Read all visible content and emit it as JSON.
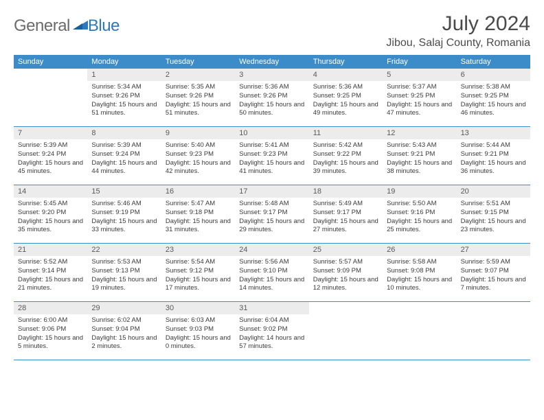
{
  "logo": {
    "general": "General",
    "blue": "Blue"
  },
  "title": "July 2024",
  "location": "Jibou, Salaj County, Romania",
  "colors": {
    "header_bg": "#3c8cc9",
    "header_text": "#ffffff",
    "date_bg": "#ececec",
    "date_text": "#595959",
    "body_text": "#3a3a3a",
    "rule": "#3c8cc9",
    "logo_gray": "#6b6b6b",
    "logo_blue": "#2f78b9"
  },
  "day_names": [
    "Sunday",
    "Monday",
    "Tuesday",
    "Wednesday",
    "Thursday",
    "Friday",
    "Saturday"
  ],
  "weeks": [
    [
      {
        "n": "",
        "empty": true
      },
      {
        "n": "1",
        "sr": "Sunrise: 5:34 AM",
        "ss": "Sunset: 9:26 PM",
        "dl": "Daylight: 15 hours and 51 minutes."
      },
      {
        "n": "2",
        "sr": "Sunrise: 5:35 AM",
        "ss": "Sunset: 9:26 PM",
        "dl": "Daylight: 15 hours and 51 minutes."
      },
      {
        "n": "3",
        "sr": "Sunrise: 5:36 AM",
        "ss": "Sunset: 9:26 PM",
        "dl": "Daylight: 15 hours and 50 minutes."
      },
      {
        "n": "4",
        "sr": "Sunrise: 5:36 AM",
        "ss": "Sunset: 9:25 PM",
        "dl": "Daylight: 15 hours and 49 minutes."
      },
      {
        "n": "5",
        "sr": "Sunrise: 5:37 AM",
        "ss": "Sunset: 9:25 PM",
        "dl": "Daylight: 15 hours and 47 minutes."
      },
      {
        "n": "6",
        "sr": "Sunrise: 5:38 AM",
        "ss": "Sunset: 9:25 PM",
        "dl": "Daylight: 15 hours and 46 minutes."
      }
    ],
    [
      {
        "n": "7",
        "sr": "Sunrise: 5:39 AM",
        "ss": "Sunset: 9:24 PM",
        "dl": "Daylight: 15 hours and 45 minutes."
      },
      {
        "n": "8",
        "sr": "Sunrise: 5:39 AM",
        "ss": "Sunset: 9:24 PM",
        "dl": "Daylight: 15 hours and 44 minutes."
      },
      {
        "n": "9",
        "sr": "Sunrise: 5:40 AM",
        "ss": "Sunset: 9:23 PM",
        "dl": "Daylight: 15 hours and 42 minutes."
      },
      {
        "n": "10",
        "sr": "Sunrise: 5:41 AM",
        "ss": "Sunset: 9:23 PM",
        "dl": "Daylight: 15 hours and 41 minutes."
      },
      {
        "n": "11",
        "sr": "Sunrise: 5:42 AM",
        "ss": "Sunset: 9:22 PM",
        "dl": "Daylight: 15 hours and 39 minutes."
      },
      {
        "n": "12",
        "sr": "Sunrise: 5:43 AM",
        "ss": "Sunset: 9:21 PM",
        "dl": "Daylight: 15 hours and 38 minutes."
      },
      {
        "n": "13",
        "sr": "Sunrise: 5:44 AM",
        "ss": "Sunset: 9:21 PM",
        "dl": "Daylight: 15 hours and 36 minutes."
      }
    ],
    [
      {
        "n": "14",
        "sr": "Sunrise: 5:45 AM",
        "ss": "Sunset: 9:20 PM",
        "dl": "Daylight: 15 hours and 35 minutes."
      },
      {
        "n": "15",
        "sr": "Sunrise: 5:46 AM",
        "ss": "Sunset: 9:19 PM",
        "dl": "Daylight: 15 hours and 33 minutes."
      },
      {
        "n": "16",
        "sr": "Sunrise: 5:47 AM",
        "ss": "Sunset: 9:18 PM",
        "dl": "Daylight: 15 hours and 31 minutes."
      },
      {
        "n": "17",
        "sr": "Sunrise: 5:48 AM",
        "ss": "Sunset: 9:17 PM",
        "dl": "Daylight: 15 hours and 29 minutes."
      },
      {
        "n": "18",
        "sr": "Sunrise: 5:49 AM",
        "ss": "Sunset: 9:17 PM",
        "dl": "Daylight: 15 hours and 27 minutes."
      },
      {
        "n": "19",
        "sr": "Sunrise: 5:50 AM",
        "ss": "Sunset: 9:16 PM",
        "dl": "Daylight: 15 hours and 25 minutes."
      },
      {
        "n": "20",
        "sr": "Sunrise: 5:51 AM",
        "ss": "Sunset: 9:15 PM",
        "dl": "Daylight: 15 hours and 23 minutes."
      }
    ],
    [
      {
        "n": "21",
        "sr": "Sunrise: 5:52 AM",
        "ss": "Sunset: 9:14 PM",
        "dl": "Daylight: 15 hours and 21 minutes."
      },
      {
        "n": "22",
        "sr": "Sunrise: 5:53 AM",
        "ss": "Sunset: 9:13 PM",
        "dl": "Daylight: 15 hours and 19 minutes."
      },
      {
        "n": "23",
        "sr": "Sunrise: 5:54 AM",
        "ss": "Sunset: 9:12 PM",
        "dl": "Daylight: 15 hours and 17 minutes."
      },
      {
        "n": "24",
        "sr": "Sunrise: 5:56 AM",
        "ss": "Sunset: 9:10 PM",
        "dl": "Daylight: 15 hours and 14 minutes."
      },
      {
        "n": "25",
        "sr": "Sunrise: 5:57 AM",
        "ss": "Sunset: 9:09 PM",
        "dl": "Daylight: 15 hours and 12 minutes."
      },
      {
        "n": "26",
        "sr": "Sunrise: 5:58 AM",
        "ss": "Sunset: 9:08 PM",
        "dl": "Daylight: 15 hours and 10 minutes."
      },
      {
        "n": "27",
        "sr": "Sunrise: 5:59 AM",
        "ss": "Sunset: 9:07 PM",
        "dl": "Daylight: 15 hours and 7 minutes."
      }
    ],
    [
      {
        "n": "28",
        "sr": "Sunrise: 6:00 AM",
        "ss": "Sunset: 9:06 PM",
        "dl": "Daylight: 15 hours and 5 minutes."
      },
      {
        "n": "29",
        "sr": "Sunrise: 6:02 AM",
        "ss": "Sunset: 9:04 PM",
        "dl": "Daylight: 15 hours and 2 minutes."
      },
      {
        "n": "30",
        "sr": "Sunrise: 6:03 AM",
        "ss": "Sunset: 9:03 PM",
        "dl": "Daylight: 15 hours and 0 minutes."
      },
      {
        "n": "31",
        "sr": "Sunrise: 6:04 AM",
        "ss": "Sunset: 9:02 PM",
        "dl": "Daylight: 14 hours and 57 minutes."
      },
      {
        "n": "",
        "empty": true
      },
      {
        "n": "",
        "empty": true
      },
      {
        "n": "",
        "empty": true
      }
    ]
  ]
}
